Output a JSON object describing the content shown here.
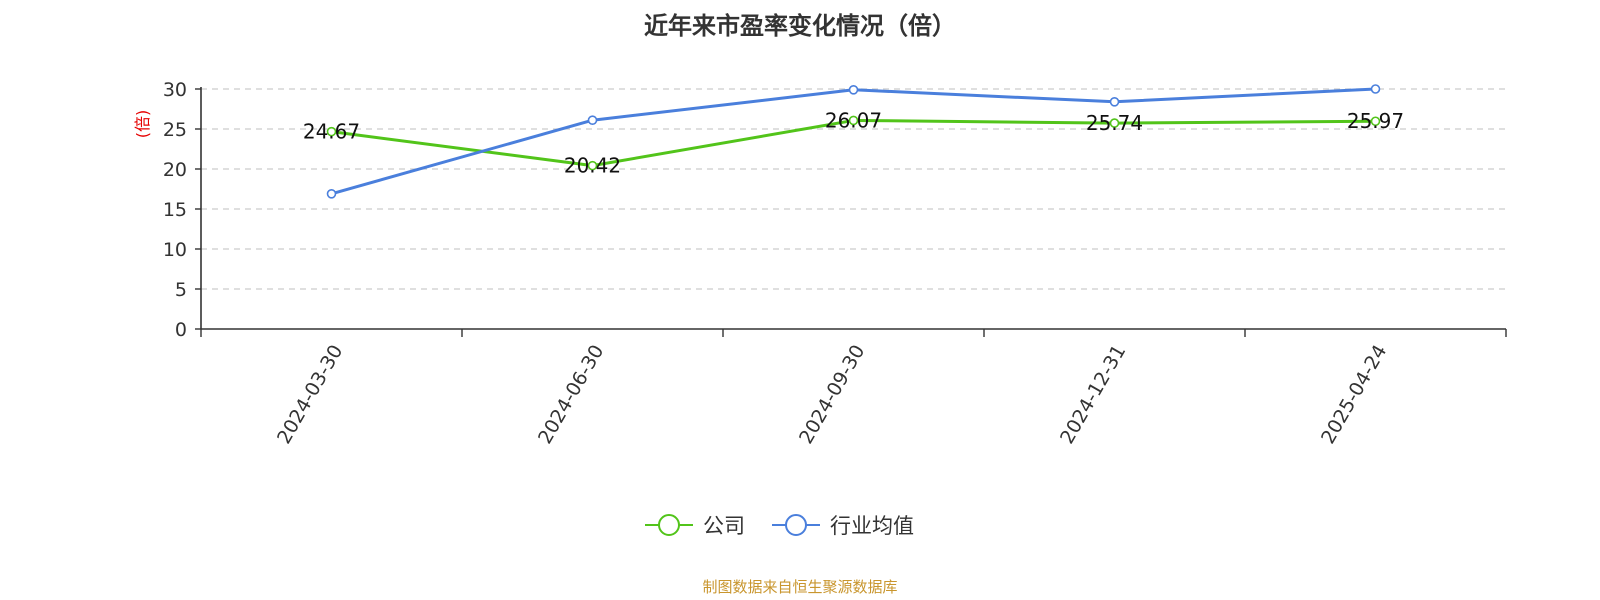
{
  "chart_data": {
    "type": "line",
    "title": "近年来市盈率变化情况（倍）",
    "ylabel": "(倍)",
    "categories": [
      "2024-03-30",
      "2024-06-30",
      "2024-09-30",
      "2024-12-31",
      "2025-04-24"
    ],
    "ylim": [
      0,
      30
    ],
    "yticks": [
      0,
      5,
      10,
      15,
      20,
      25,
      30
    ],
    "grid": true,
    "legend_position": "bottom-center",
    "series": [
      {
        "name": "公司",
        "color": "#52c41a",
        "values": [
          24.67,
          20.42,
          26.07,
          25.74,
          25.97
        ],
        "labels": [
          "24.67",
          "20.42",
          "26.07",
          "25.74",
          "25.97"
        ]
      },
      {
        "name": "行业均值",
        "color": "#4a7fdc",
        "values": [
          16.9,
          26.1,
          29.9,
          28.4,
          30.0
        ]
      }
    ],
    "ylabel_color": "#e60000"
  },
  "source": {
    "text": "制图数据来自恒生聚源数据库",
    "color": "#c9962e"
  }
}
